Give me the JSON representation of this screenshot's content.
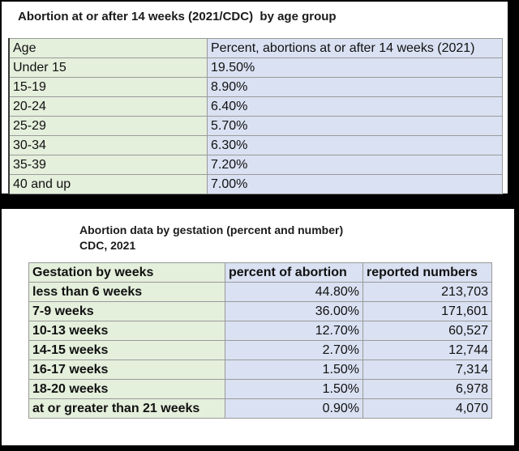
{
  "table1": {
    "title": "Abortion at or after 14 weeks (2021/CDC)  by age group",
    "headers": [
      "Age",
      "Percent, abortions at or after 14 weeks (2021)"
    ],
    "rows": [
      [
        "Under 15",
        "19.50%"
      ],
      [
        "15-19",
        "8.90%"
      ],
      [
        "20-24",
        "6.40%"
      ],
      [
        "25-29",
        "5.70%"
      ],
      [
        "30-34",
        "6.30%"
      ],
      [
        "35-39",
        "7.20%"
      ],
      [
        "40 and up",
        "7.00%"
      ]
    ]
  },
  "table2": {
    "title": "Abortion data by gestation (percent and number)",
    "subtitle": "CDC, 2021",
    "headers": [
      "Gestation by weeks",
      "percent of abortion",
      "reported numbers"
    ],
    "rows": [
      [
        "less than 6 weeks",
        "44.80%",
        "213,703"
      ],
      [
        "7-9 weeks",
        "36.00%",
        "171,601"
      ],
      [
        "10-13 weeks",
        "12.70%",
        "60,527"
      ],
      [
        "14-15 weeks",
        "2.70%",
        "12,744"
      ],
      [
        "16-17 weeks",
        "1.50%",
        "7,314"
      ],
      [
        "18-20 weeks",
        "1.50%",
        "6,978"
      ],
      [
        "at or greater than  21 weeks",
        "0.90%",
        "4,070"
      ]
    ]
  },
  "colors": {
    "label_column_bg": "#e4efdc",
    "value_column_bg": "#d9e1f2",
    "frame": "#000000"
  }
}
